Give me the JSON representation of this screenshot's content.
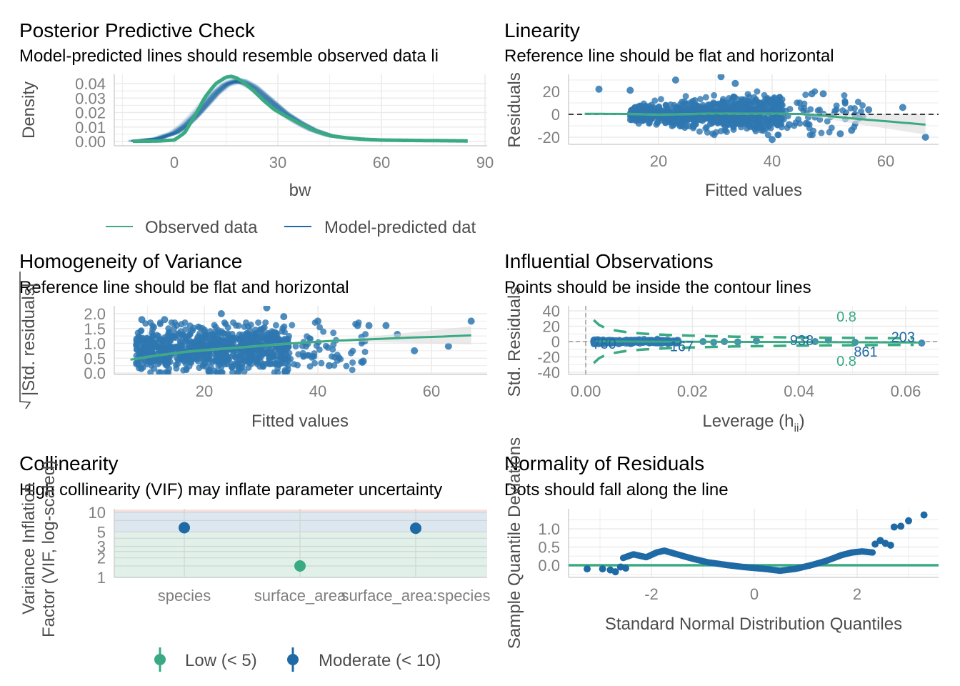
{
  "colors": {
    "green": "#3aaa82",
    "blue": "#1f6aa5",
    "blue_alpha": "#2e77b0",
    "dark": "#4d4d4d",
    "tick": "#7f7f7f",
    "ci": "#dcdcdc"
  },
  "chart_data": [
    {
      "id": "ppc",
      "type": "line",
      "title": "Posterior Predictive Check",
      "subtitle": "Model-predicted lines should resemble observed data li",
      "xlabel": "bw",
      "ylabel": "Density",
      "xlim": [
        -12,
        90
      ],
      "ylim": [
        0,
        0.046
      ],
      "xticks": [
        0,
        30,
        60,
        90
      ],
      "yticks": [
        "0.00",
        "0.01",
        "0.02",
        "0.03",
        "0.04"
      ],
      "legend": {
        "position": "bottom",
        "entries": [
          {
            "label": "Observed data",
            "color": "#3aaa82"
          },
          {
            "label": "Model-predicted dat",
            "color": "#1f6aa5"
          }
        ]
      },
      "series": [
        {
          "name": "Observed data",
          "x": [
            -12,
            -5,
            0,
            3,
            6,
            9,
            12,
            15,
            16.5,
            18,
            20,
            23,
            26,
            29,
            32,
            36,
            40,
            45,
            50,
            55,
            60,
            70,
            80,
            85
          ],
          "y": [
            0.0002,
            0.0003,
            0.001,
            0.006,
            0.018,
            0.031,
            0.04,
            0.0445,
            0.045,
            0.044,
            0.041,
            0.035,
            0.028,
            0.022,
            0.018,
            0.013,
            0.008,
            0.004,
            0.0025,
            0.0015,
            0.001,
            0.0007,
            0.0005,
            0.0004
          ]
        },
        {
          "name": "Model-predicted data",
          "x": [
            -12,
            -5,
            0,
            3,
            6,
            9,
            12,
            15,
            18,
            20,
            23,
            26,
            29,
            32,
            36,
            40,
            45,
            50,
            55,
            60,
            70
          ],
          "y": [
            0.0003,
            0.002,
            0.006,
            0.011,
            0.018,
            0.026,
            0.034,
            0.04,
            0.042,
            0.041,
            0.037,
            0.031,
            0.025,
            0.019,
            0.013,
            0.008,
            0.004,
            0.0022,
            0.0012,
            0.0007,
            0.0003
          ]
        }
      ]
    },
    {
      "id": "linearity",
      "type": "scatter",
      "title": "Linearity",
      "subtitle": "Reference line should be flat and horizontal",
      "xlabel": "Fitted values",
      "ylabel": "Residuals",
      "xlim": [
        5,
        68
      ],
      "ylim": [
        -24,
        32
      ],
      "xticks": [
        20,
        40,
        60
      ],
      "yticks": [
        -20,
        0,
        20
      ],
      "n_points": 900,
      "reference_line": 0,
      "smooth": {
        "x": [
          7,
          15,
          20,
          25,
          30,
          35,
          40,
          45,
          50,
          55,
          60,
          67
        ],
        "y": [
          0.5,
          0.3,
          -0.3,
          0.2,
          0.6,
          0.4,
          0.5,
          0.3,
          -1.5,
          -4,
          -6,
          -9
        ]
      },
      "outliers": [
        [
          9.5,
          22
        ],
        [
          15,
          21
        ],
        [
          23,
          30
        ],
        [
          31,
          33
        ],
        [
          33.5,
          27
        ],
        [
          47,
          18
        ],
        [
          49,
          18
        ],
        [
          57,
          4
        ],
        [
          63,
          6
        ],
        [
          67,
          -20
        ],
        [
          52,
          -17
        ],
        [
          54,
          -14
        ],
        [
          40,
          -22
        ],
        [
          43,
          -9
        ],
        [
          46,
          -8
        ]
      ]
    },
    {
      "id": "homogeneity",
      "type": "scatter",
      "title": "Homogeneity of Variance",
      "subtitle": "Reference line should be flat and horizontal",
      "xlabel": "Fitted values",
      "ylabel": "√|Std. residuals|",
      "xlim": [
        5,
        68
      ],
      "ylim": [
        0,
        2.15
      ],
      "xticks": [
        20,
        40,
        60
      ],
      "yticks": [
        "0.0",
        "0.5",
        "1.0",
        "1.5",
        "2.0"
      ],
      "n_points": 900,
      "smooth": {
        "x": [
          7,
          12,
          17,
          22,
          27,
          32,
          37,
          42,
          47,
          52,
          57,
          62,
          67
        ],
        "y": [
          0.45,
          0.6,
          0.72,
          0.8,
          0.87,
          0.95,
          1.02,
          1.08,
          1.12,
          1.16,
          1.2,
          1.23,
          1.27
        ]
      },
      "outliers": [
        [
          9,
          1.8
        ],
        [
          13,
          1.8
        ],
        [
          23,
          2.0
        ],
        [
          31,
          2.2
        ],
        [
          34,
          1.9
        ],
        [
          40,
          1.75
        ],
        [
          47,
          1.6
        ],
        [
          49,
          1.6
        ],
        [
          52,
          1.6
        ],
        [
          54,
          1.3
        ],
        [
          57,
          0.75
        ],
        [
          63,
          0.9
        ],
        [
          67,
          1.75
        ],
        [
          48,
          0.4
        ],
        [
          42,
          0.25
        ]
      ]
    },
    {
      "id": "influential",
      "type": "scatter",
      "title": "Influential Observations",
      "subtitle": "Points should be inside the contour lines",
      "xlabel": "Leverage (h",
      "xlabel_sub": "ii",
      "xlabel_close": ")",
      "ylabel": "Std. Residuals",
      "xlim": [
        -0.003,
        0.066
      ],
      "ylim": [
        -45,
        45
      ],
      "xticks": [
        "0.00",
        "0.02",
        "0.04",
        "0.06"
      ],
      "yticks": [
        -40,
        -20,
        0,
        20,
        40
      ],
      "n_points": 600,
      "contour_label": "0.8",
      "labels": [
        {
          "text": "780",
          "x": 0.0035,
          "y": -3
        },
        {
          "text": "167",
          "x": 0.018,
          "y": -6
        },
        {
          "text": "938",
          "x": 0.0405,
          "y": 2
        },
        {
          "text": "203",
          "x": 0.0595,
          "y": 6
        },
        {
          "text": "861",
          "x": 0.0525,
          "y": -13
        }
      ],
      "outliers": [
        [
          0.043,
          0
        ],
        [
          0.0455,
          2
        ],
        [
          0.0505,
          -1
        ],
        [
          0.063,
          -2
        ],
        [
          0.032,
          1
        ],
        [
          0.0285,
          -0.5
        ],
        [
          0.026,
          0
        ],
        [
          0.024,
          -1
        ],
        [
          0.022,
          0
        ]
      ]
    },
    {
      "id": "collinearity",
      "type": "scatter",
      "title": "Collinearity",
      "subtitle": "High collinearity (VIF) may inflate parameter uncertainty",
      "ylabel": "Variance Inflation\nFactor (VIF, log-scaled)",
      "categories": [
        "species",
        "surface_area",
        "surface_area:species"
      ],
      "values": [
        5.8,
        1.5,
        5.7
      ],
      "groups": [
        "Moderate",
        "Low",
        "Moderate"
      ],
      "ylim": [
        1,
        11
      ],
      "yscale": "log",
      "yticks": [
        1,
        2,
        3,
        5,
        10
      ],
      "bands": [
        {
          "from": 1,
          "to": 5,
          "color": "#e1f1ea"
        },
        {
          "from": 5,
          "to": 10,
          "color": "#dde7f0"
        },
        {
          "from": 10,
          "to": 11,
          "color": "#f6dedc"
        }
      ],
      "legend": {
        "position": "bottom",
        "entries": [
          {
            "label": "Low (< 5)",
            "color": "#3aaa82"
          },
          {
            "label": "Moderate (< 10)",
            "color": "#1f6aa5"
          }
        ]
      }
    },
    {
      "id": "normality",
      "type": "scatter",
      "title": "Normality of Residuals",
      "subtitle": "Dots should fall along the line",
      "xlabel": "Standard Normal Distribution Quantiles",
      "ylabel": "Sample Quantile Deviations",
      "xlim": [
        -3.5,
        3.55
      ],
      "ylim": [
        -0.3,
        1.55
      ],
      "xticks": [
        -2,
        0,
        2
      ],
      "yticks": [
        "0.0",
        "0.5",
        "1.0"
      ],
      "reference_line": 0,
      "curve": {
        "x": [
          -2.55,
          -2.35,
          -2.1,
          -1.9,
          -1.75,
          -1.5,
          -1.2,
          -0.9,
          -0.5,
          -0.2,
          0.2,
          0.5,
          0.8,
          1.1,
          1.4,
          1.7,
          1.9,
          2.1,
          2.3
        ],
        "y": [
          0.2,
          0.3,
          0.22,
          0.35,
          0.4,
          0.3,
          0.18,
          0.08,
          0.0,
          -0.05,
          -0.1,
          -0.15,
          -0.1,
          0.0,
          0.12,
          0.28,
          0.35,
          0.38,
          0.35
        ]
      },
      "tail_points": [
        [
          -3.25,
          -0.1
        ],
        [
          -2.95,
          -0.1
        ],
        [
          -2.8,
          -0.13
        ],
        [
          -2.7,
          -0.18
        ],
        [
          -2.6,
          -0.05
        ],
        [
          -2.5,
          -0.08
        ],
        [
          2.35,
          0.58
        ],
        [
          2.45,
          0.68
        ],
        [
          2.55,
          0.6
        ],
        [
          2.65,
          0.55
        ],
        [
          2.72,
          1.05
        ],
        [
          2.85,
          1.07
        ],
        [
          3.0,
          1.22
        ],
        [
          3.3,
          1.38
        ]
      ]
    }
  ]
}
